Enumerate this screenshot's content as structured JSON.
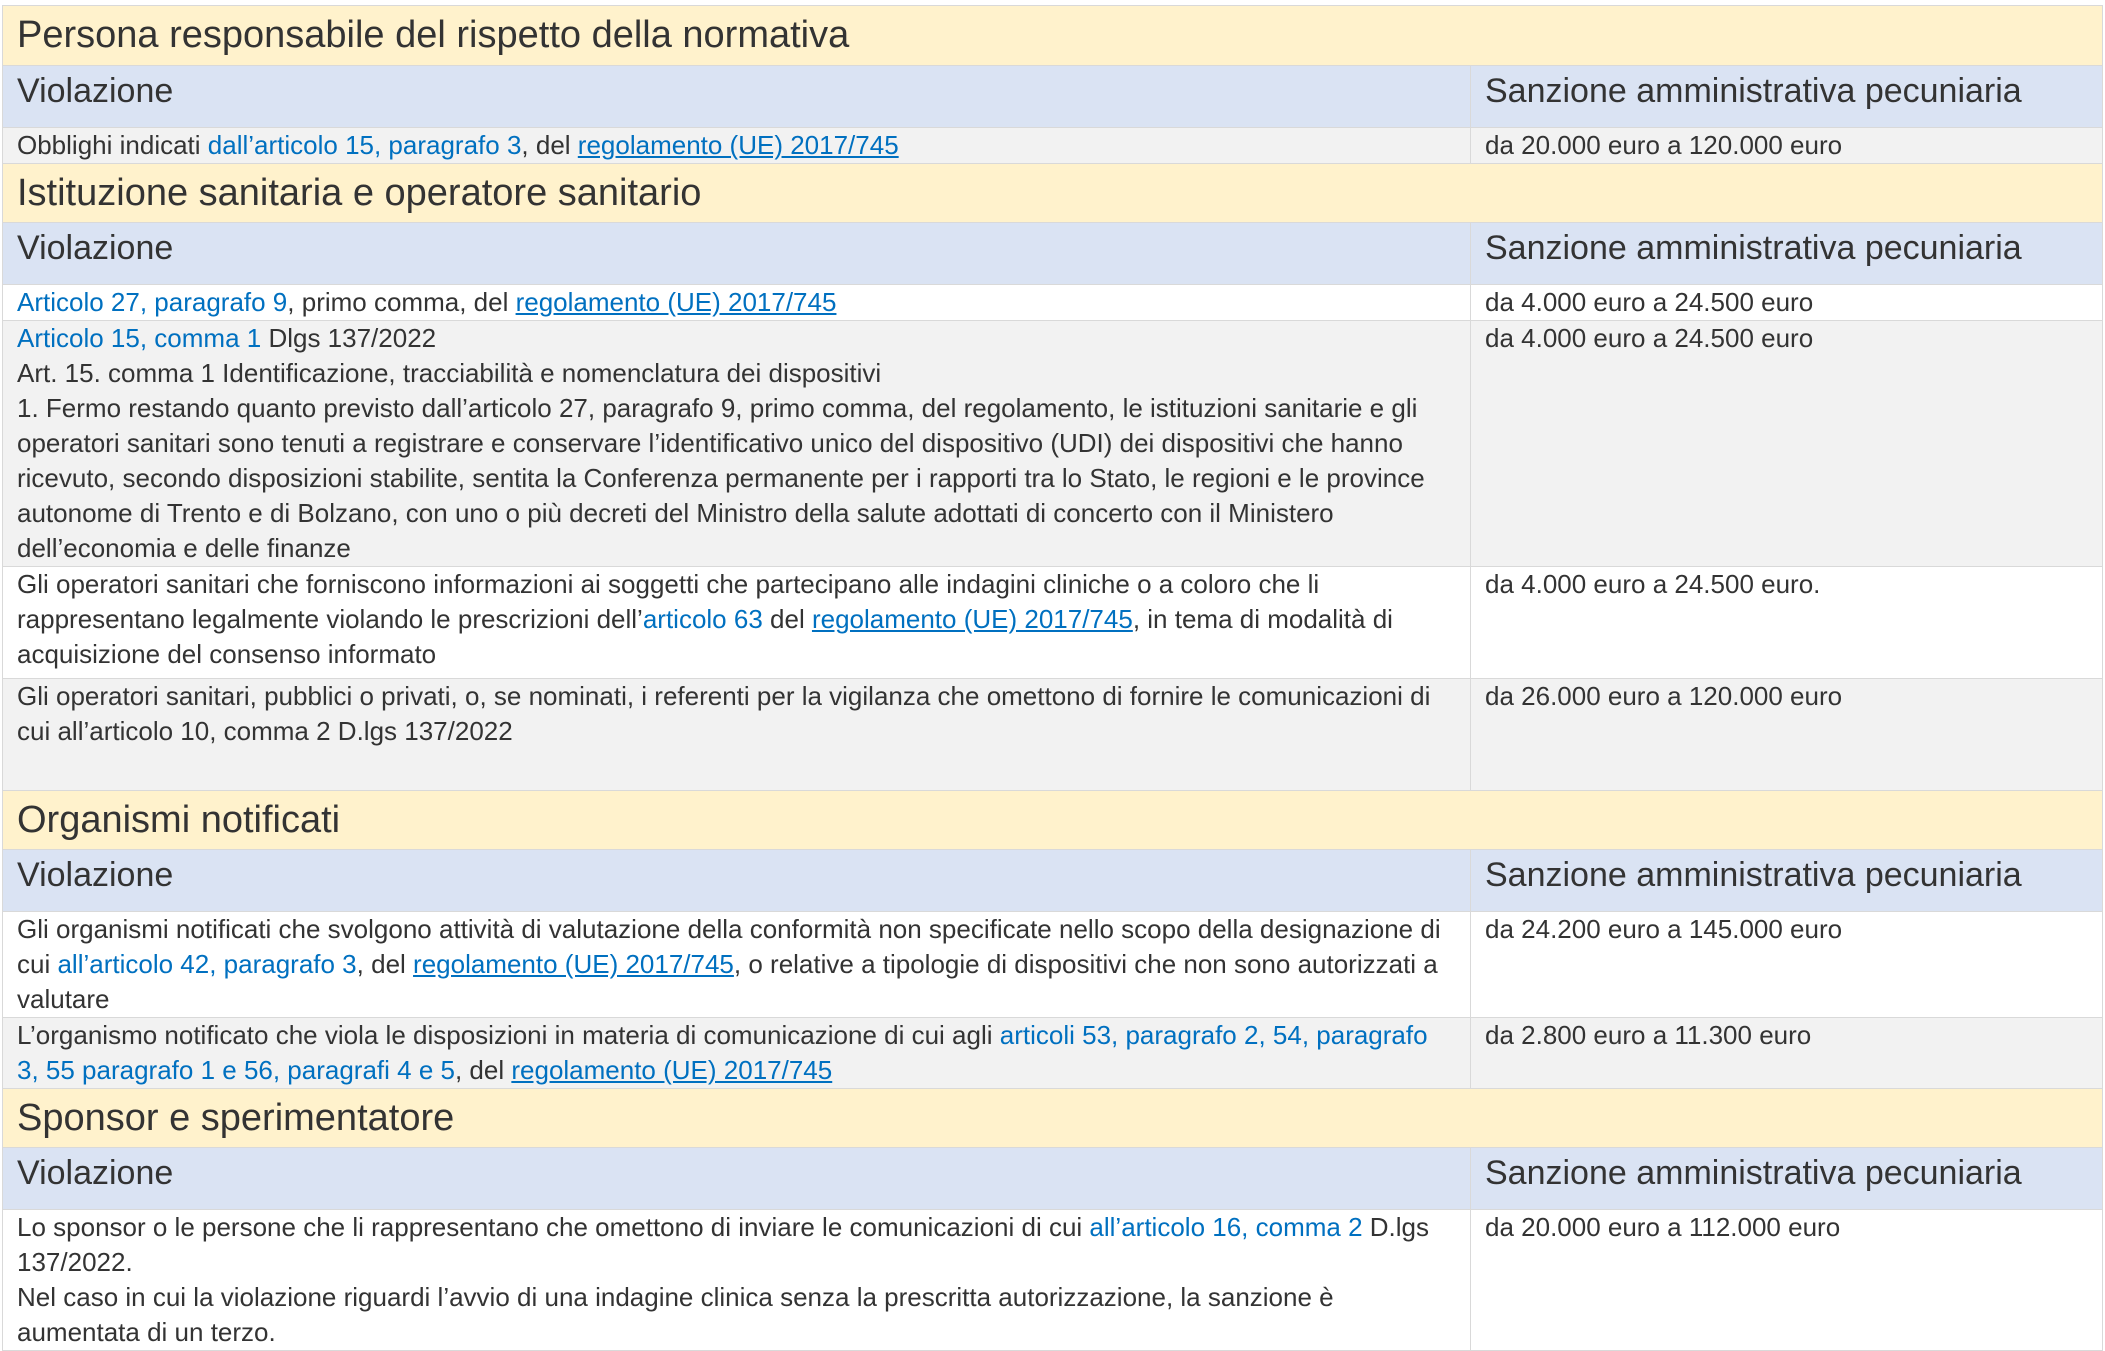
{
  "colors": {
    "section_bg": "#fff2cc",
    "header_bg": "#dae3f3",
    "row_alt_bg": "#f2f2f2",
    "link": "#0070c0",
    "text": "#333333"
  },
  "column_headers": {
    "violation": "Violazione",
    "sanction": "Sanzione amministrativa pecuniaria"
  },
  "sections": [
    {
      "title": "Persona responsabile del rispetto della normativa",
      "rows": [
        {
          "shade": "gray",
          "violation": [
            [
              {
                "t": "Obblighi indicati "
              },
              {
                "t": "dall’articolo 15, paragrafo 3",
                "link": true
              },
              {
                "t": ", del "
              },
              {
                "t": "regolamento (UE) 2017/745",
                "link": true,
                "u": true
              }
            ]
          ],
          "sanction": "da 20.000 euro a 120.000 euro"
        }
      ]
    },
    {
      "title": "Istituzione sanitaria e operatore sanitario",
      "rows": [
        {
          "shade": "white",
          "violation": [
            [
              {
                "t": "Articolo 27, paragrafo 9",
                "link": true
              },
              {
                "t": ", primo comma, del "
              },
              {
                "t": "regolamento (UE) 2017/745",
                "link": true,
                "u": true
              }
            ]
          ],
          "sanction": "da 4.000 euro a 24.500 euro"
        },
        {
          "shade": "gray",
          "violation": [
            [
              {
                "t": "Articolo 15, comma 1",
                "link": true
              },
              {
                "t": " Dlgs 137/2022"
              }
            ],
            [
              {
                "t": "Art. 15. comma 1 Identificazione, tracciabilità e nomenclatura dei dispositivi"
              }
            ],
            [
              {
                "t": "1. Fermo restando quanto previsto dall’articolo 27, paragrafo 9, primo comma, del regolamento, le istituzioni sanitarie e gli operatori sanitari sono tenuti a registrare e conservare l’identificativo unico del dispositivo (UDI) dei dispositivi che hanno ricevuto, secondo disposizioni stabilite, sentita la Conferenza permanente per i rapporti tra lo Stato, le regioni e le province autonome di Trento e di Bolzano, con uno o più decreti del Ministro della salute adottati di concerto con il Ministero dell’economia e delle finanze"
              }
            ]
          ],
          "sanction": "da 4.000 euro a 24.500 euro"
        },
        {
          "shade": "white",
          "violation": [
            [
              {
                "t": "Gli operatori sanitari che forniscono informazioni ai soggetti che partecipano alle indagini cliniche o a coloro che li rappresentano legalmente violando le prescrizioni dell’"
              },
              {
                "t": "articolo 63",
                "link": true
              },
              {
                "t": " del "
              },
              {
                "t": "regolamento (UE) 2017/745",
                "link": true,
                "u": true
              },
              {
                "t": ", in tema di modalità di acquisizione del consenso informato"
              }
            ]
          ],
          "sanction": "da 4.000 euro a 24.500 euro."
        },
        {
          "shade": "gray",
          "violation": [
            [
              {
                "t": "Gli operatori sanitari, pubblici o privati, o, se nominati, i referenti per la vigilanza che omettono di fornire le comunicazioni di cui all’articolo 10, comma 2 D.lgs 137/2022"
              }
            ]
          ],
          "sanction": "da 26.000 euro a 120.000 euro"
        }
      ]
    },
    {
      "title": "Organismi notificati",
      "rows": [
        {
          "shade": "white",
          "violation": [
            [
              {
                "t": "Gli organismi notificati che svolgono attività di valutazione della conformità non specificate nello scopo della designazione di cui "
              },
              {
                "t": "all’articolo 42, paragrafo 3",
                "link": true
              },
              {
                "t": ", del "
              },
              {
                "t": "regolamento (UE) 2017/745",
                "link": true,
                "u": true
              },
              {
                "t": ", o relative a tipologie di dispositivi che non sono autorizzati a valutare"
              }
            ]
          ],
          "sanction": "da 24.200 euro a 145.000 euro"
        },
        {
          "shade": "gray",
          "violation": [
            [
              {
                "t": "L’organismo notificato che viola le disposizioni in materia di comunicazione di cui agli "
              },
              {
                "t": "articoli 53, paragrafo 2, 54, paragrafo 3, 55 paragrafo 1 e 56, paragrafi 4 e 5",
                "link": true
              },
              {
                "t": ", del "
              },
              {
                "t": "regolamento (UE) 2017/745",
                "link": true,
                "u": true
              }
            ]
          ],
          "sanction": "da 2.800 euro a 11.300 euro"
        }
      ]
    },
    {
      "title": "Sponsor e sperimentatore",
      "rows": [
        {
          "shade": "white",
          "violation": [
            [
              {
                "t": "Lo sponsor o le persone che li rappresentano che omettono di inviare le comunicazioni di cui "
              },
              {
                "t": "all’articolo 16, comma 2",
                "link": true
              },
              {
                "t": " D.lgs 137/2022."
              }
            ],
            [
              {
                "t": "Nel caso in cui la violazione riguardi l’avvio di una indagine clinica senza la prescritta autorizzazione, la sanzione è aumentata di un terzo."
              }
            ]
          ],
          "sanction": "da 20.000 euro a 112.000 euro"
        }
      ]
    }
  ]
}
